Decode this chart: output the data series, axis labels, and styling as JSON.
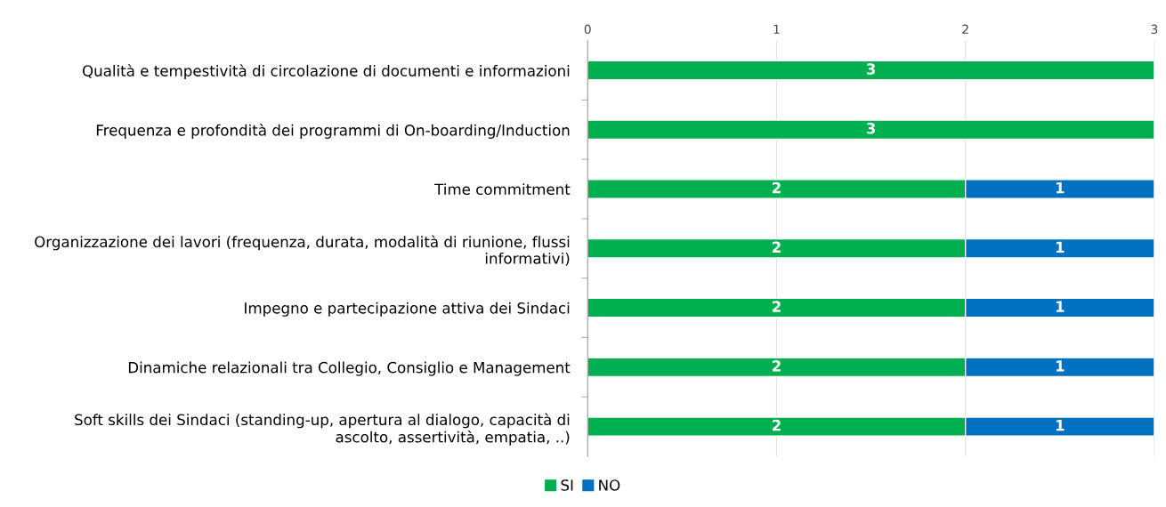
{
  "chart_data": {
    "type": "bar",
    "orientation": "horizontal",
    "stacked": true,
    "categories": [
      "Qualità e tempestività di circolazione di documenti e informazioni",
      "Frequenza e profondità dei programmi di On-boarding/Induction",
      "Time commitment",
      "Organizzazione dei lavori (frequenza, durata, modalità di riunione, flussi\ninformativi)",
      "Impegno e partecipazione attiva dei Sindaci",
      "Dinamiche relazionali tra Collegio, Consiglio e Management",
      "Soft skills dei Sindaci (standing-up, apertura al dialogo, capacità di\nascolto, assertività, empatia, ..)"
    ],
    "series": [
      {
        "name": "SI",
        "color": "#00b050",
        "values": [
          3,
          3,
          2,
          2,
          2,
          2,
          2
        ]
      },
      {
        "name": "NO",
        "color": "#0070c0",
        "values": [
          null,
          null,
          1,
          1,
          1,
          1,
          1
        ]
      }
    ],
    "xlim": [
      0,
      3
    ],
    "xticks": [
      0,
      1,
      2,
      3
    ],
    "grid": "x",
    "legend": "bottom",
    "data_labels": true
  }
}
